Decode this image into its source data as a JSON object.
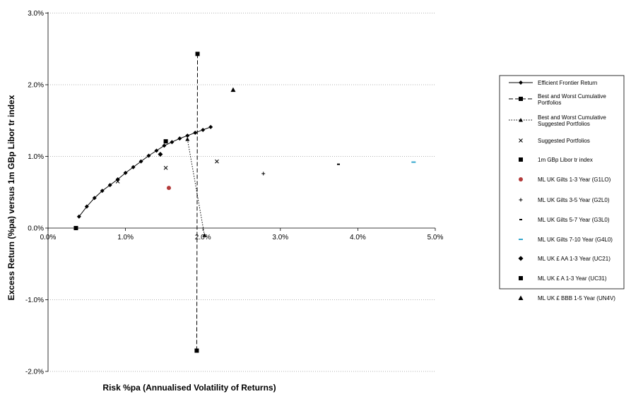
{
  "chart_data": {
    "type": "scatter",
    "title": "",
    "xlabel": "Risk %pa (Annualised Volatility of Returns)",
    "ylabel": "Excess Return (%pa) versus 1m GBp Libor tr index",
    "xlim": [
      0,
      5
    ],
    "ylim": [
      -2,
      3
    ],
    "x_ticks": [
      0,
      1,
      2,
      3,
      4,
      5
    ],
    "y_ticks": [
      -2,
      -1,
      0,
      1,
      2,
      3
    ],
    "x_tick_labels": [
      "0.0%",
      "1.0%",
      "2.0%",
      "3.0%",
      "4.0%",
      "5.0%"
    ],
    "y_tick_labels": [
      "-2.0%",
      "-1.0%",
      "0.0%",
      "1.0%",
      "2.0%",
      "3.0%"
    ],
    "grid": "horizontal dotted",
    "legend_position": "right",
    "series": [
      {
        "name": "Efficient Frontier Return",
        "marker": "diamond-small",
        "line": "solid",
        "points": [
          [
            0.4,
            0.16
          ],
          [
            0.5,
            0.3
          ],
          [
            0.6,
            0.42
          ],
          [
            0.7,
            0.52
          ],
          [
            0.8,
            0.6
          ],
          [
            0.9,
            0.68
          ],
          [
            1.0,
            0.77
          ],
          [
            1.1,
            0.85
          ],
          [
            1.2,
            0.93
          ],
          [
            1.3,
            1.01
          ],
          [
            1.4,
            1.08
          ],
          [
            1.5,
            1.15
          ],
          [
            1.6,
            1.2
          ],
          [
            1.7,
            1.25
          ],
          [
            1.8,
            1.29
          ],
          [
            1.9,
            1.33
          ],
          [
            2.0,
            1.37
          ],
          [
            2.1,
            1.41
          ]
        ]
      },
      {
        "name": "Best and Worst Cumulative Portfolios",
        "marker": "square",
        "line": "dashed",
        "points": [
          [
            1.93,
            2.43
          ],
          [
            1.92,
            -1.71
          ]
        ]
      },
      {
        "name": "Best and Worst Cumulative Suggested Portfolios",
        "marker": "triangle-small",
        "line": "dotted",
        "points": [
          [
            1.8,
            1.24
          ],
          [
            2.02,
            -0.1
          ]
        ]
      },
      {
        "name": "Suggested Portfolios",
        "marker": "x",
        "line": "none",
        "points": [
          [
            0.9,
            0.65
          ],
          [
            1.52,
            0.84
          ],
          [
            2.18,
            0.93
          ]
        ]
      },
      {
        "name": "1m GBp Libor tr index",
        "marker": "square",
        "line": "none",
        "points": [
          [
            0.36,
            0.0
          ]
        ]
      },
      {
        "name": "ML UK Gilts 1-3 Year (G1LO)",
        "marker": "circle",
        "line": "none",
        "points": [
          [
            1.56,
            0.56
          ]
        ]
      },
      {
        "name": "ML UK Gilts 3-5 Year (G2L0)",
        "marker": "plus",
        "line": "none",
        "points": [
          [
            2.78,
            0.76
          ]
        ]
      },
      {
        "name": "ML UK Gilts 5-7 Year (G3L0)",
        "marker": "dash",
        "line": "none",
        "points": [
          [
            3.75,
            0.89
          ]
        ]
      },
      {
        "name": "ML UK Gilts 7-10 Year (G4L0)",
        "marker": "dash-wide",
        "line": "none",
        "points": [
          [
            4.72,
            0.92
          ]
        ]
      },
      {
        "name": "ML UK £ AA 1-3 Year (UC21)",
        "marker": "diamond",
        "line": "none",
        "points": [
          [
            1.45,
            1.03
          ]
        ]
      },
      {
        "name": "ML UK £ A 1-3 Year (UC31)",
        "marker": "square",
        "line": "none",
        "points": [
          [
            1.52,
            1.21
          ]
        ]
      },
      {
        "name": "ML UK £ BBB 1-5 Year (UN4V)",
        "marker": "triangle",
        "line": "none",
        "points": [
          [
            2.39,
            1.93
          ]
        ]
      }
    ],
    "colors": {
      "ML UK Gilts 1-3 Year (G1LO)": "#b33a3a",
      "ML UK Gilts 7-10 Year (G4L0)": "#33a6cc"
    }
  }
}
